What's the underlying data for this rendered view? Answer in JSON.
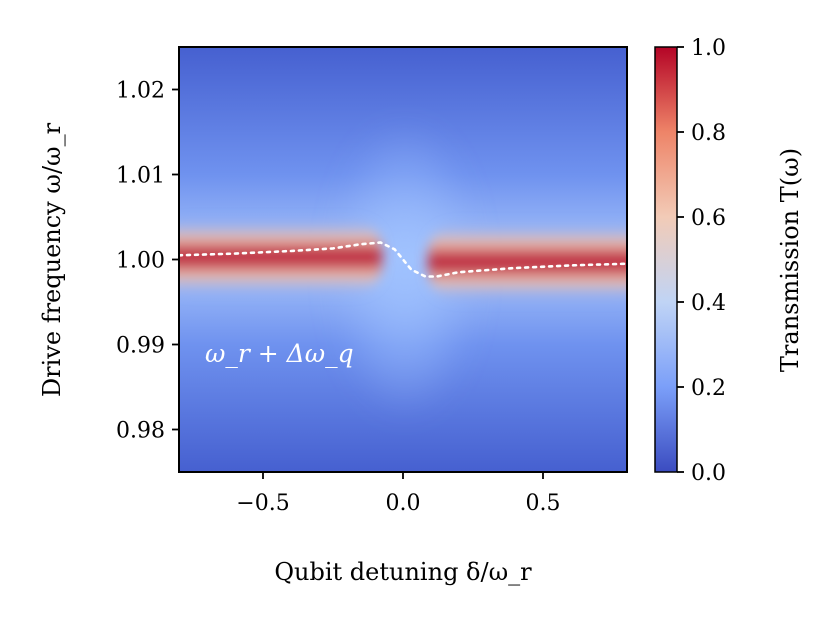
{
  "chart_data": {
    "type": "heatmap",
    "title": "",
    "xlabel": "Qubit detuning δ/ω_r",
    "ylabel": "Drive frequency ω/ω_r",
    "xlim": [
      -0.8,
      0.8
    ],
    "ylim": [
      0.975,
      1.025
    ],
    "x_ticks": [
      {
        "value": -0.5,
        "label": "−0.5"
      },
      {
        "value": 0.0,
        "label": "0.0"
      },
      {
        "value": 0.5,
        "label": "0.5"
      }
    ],
    "y_ticks": [
      {
        "value": 0.98,
        "label": "0.98"
      },
      {
        "value": 0.99,
        "label": "0.99"
      },
      {
        "value": 1.0,
        "label": "1.00"
      },
      {
        "value": 1.01,
        "label": "1.01"
      },
      {
        "value": 1.02,
        "label": "1.02"
      }
    ],
    "colorbar": {
      "label": "Transmission T(ω)",
      "colormap": "coolwarm",
      "range": [
        0.0,
        1.0
      ],
      "ticks": [
        {
          "value": 0.0,
          "label": "0.0"
        },
        {
          "value": 0.2,
          "label": "0.2"
        },
        {
          "value": 0.4,
          "label": "0.4"
        },
        {
          "value": 0.6,
          "label": "0.6"
        },
        {
          "value": 0.8,
          "label": "0.8"
        },
        {
          "value": 1.0,
          "label": "1.0"
        }
      ],
      "color_stops": [
        "#3b4cc0",
        "#7b9ff9",
        "#c0d4f5",
        "#f2cbb7",
        "#ee8468",
        "#b40426"
      ]
    },
    "series": [
      {
        "name": "dressed resonator frequency",
        "style": "dotted-white",
        "x": [
          -0.8,
          -0.6,
          -0.4,
          -0.25,
          -0.15,
          -0.08,
          -0.03,
          0.0,
          0.03,
          0.08,
          0.12,
          0.2,
          0.4,
          0.6,
          0.8
        ],
        "y": [
          1.0005,
          1.0007,
          1.001,
          1.0013,
          1.0018,
          1.002,
          1.0012,
          1.0,
          0.9988,
          0.998,
          0.998,
          0.9985,
          0.999,
          0.9993,
          0.9995
        ]
      }
    ],
    "annotation": "ω_r + Δω_q"
  }
}
